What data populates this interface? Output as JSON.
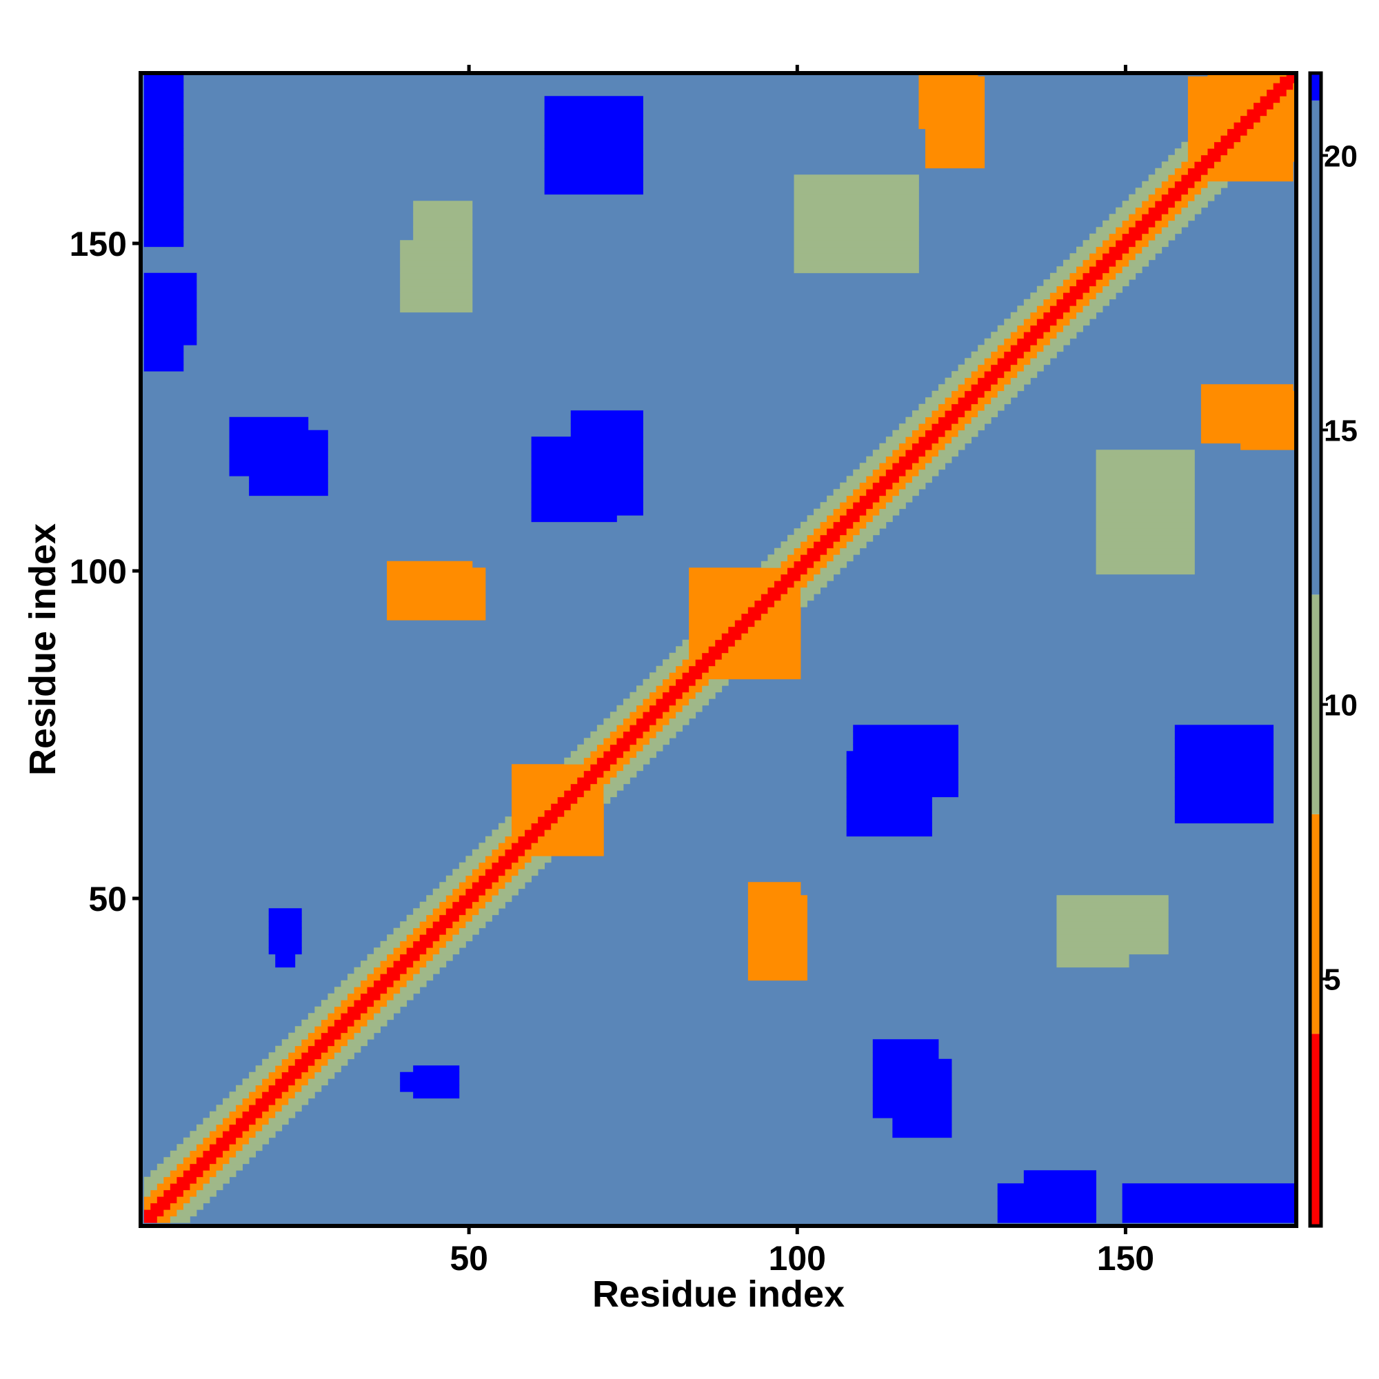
{
  "chart_data": {
    "type": "heatmap",
    "title": "",
    "xlabel": "Residue index",
    "ylabel": "Residue index",
    "n_residues": 176,
    "xlim": [
      1,
      176
    ],
    "ylim": [
      1,
      176
    ],
    "x_ticks": [
      50,
      100,
      150
    ],
    "y_ticks": [
      50,
      100,
      150
    ],
    "colorbar": {
      "range": [
        0.5,
        21.5
      ],
      "ticks": [
        5,
        10,
        15,
        20
      ],
      "bands": [
        {
          "from": 0.5,
          "to": 4,
          "color": "#ff0000"
        },
        {
          "from": 4,
          "to": 8,
          "color": "#ff8c00"
        },
        {
          "from": 8,
          "to": 12,
          "color": "#9fb889"
        },
        {
          "from": 12,
          "to": 21,
          "color": "#5a86b8"
        },
        {
          "from": 21,
          "to": 21.5,
          "color": "#0000ff"
        }
      ]
    },
    "value_description": "distance between residue pairs (contact map)",
    "diagonal_contacts": {
      "main_diagonal_value": 2,
      "adjacent_band_value": 6,
      "near_band_value": 10
    },
    "high_distance_regions": [
      {
        "x": [
          1,
          6
        ],
        "y": [
          150,
          176
        ],
        "value": 21
      },
      {
        "x": [
          1,
          8
        ],
        "y": [
          135,
          145
        ],
        "value": 21
      },
      {
        "x": [
          17,
          28
        ],
        "y": [
          112,
          121
        ],
        "value": 21
      },
      {
        "x": [
          60,
          72
        ],
        "y": [
          108,
          120
        ],
        "value": 21
      },
      {
        "x": [
          62,
          74
        ],
        "y": [
          160,
          172
        ],
        "value": 21
      },
      {
        "x": [
          20,
          24
        ],
        "y": [
          42,
          48
        ],
        "value": 21
      },
      {
        "x": [
          40,
          48
        ],
        "y": [
          21,
          23
        ],
        "value": 21
      },
      {
        "x": [
          109,
          124
        ],
        "y": [
          66,
          76
        ],
        "value": 21
      },
      {
        "x": [
          158,
          172
        ],
        "y": [
          62,
          76
        ],
        "value": 21
      },
      {
        "x": [
          115,
          123
        ],
        "y": [
          14,
          25
        ],
        "value": 21
      },
      {
        "x": [
          131,
          145
        ],
        "y": [
          1,
          6
        ],
        "value": 21
      }
    ],
    "contact_clusters": [
      {
        "x": [
          38,
          50
        ],
        "y": [
          93,
          101
        ],
        "value": 7
      },
      {
        "x": [
          84,
          98
        ],
        "y": [
          84,
          100
        ],
        "value": 7
      },
      {
        "x": [
          57,
          68
        ],
        "y": [
          58,
          70
        ],
        "value": 7
      },
      {
        "x": [
          93,
          100
        ],
        "y": [
          43,
          52
        ],
        "value": 7
      },
      {
        "x": [
          119,
          127
        ],
        "y": [
          168,
          176
        ],
        "value": 7
      },
      {
        "x": [
          163,
          175
        ],
        "y": [
          160,
          176
        ],
        "value": 7
      },
      {
        "x": [
          162,
          175
        ],
        "y": [
          120,
          128
        ],
        "value": 7
      },
      {
        "x": [
          146,
          160
        ],
        "y": [
          100,
          118
        ],
        "value": 8
      },
      {
        "x": [
          140,
          150
        ],
        "y": [
          40,
          50
        ],
        "value": 9
      },
      {
        "x": [
          42,
          50
        ],
        "y": [
          140,
          156
        ],
        "value": 9
      }
    ]
  }
}
